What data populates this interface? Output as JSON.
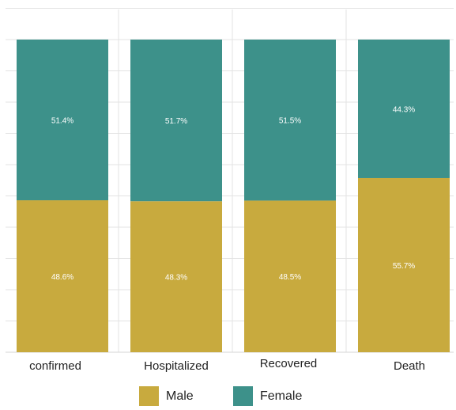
{
  "chart_data": {
    "type": "bar",
    "stacked": true,
    "categories": [
      "confirmed",
      "Hospitalized",
      "Recovered",
      "Death"
    ],
    "series": [
      {
        "name": "Male",
        "values": [
          48.6,
          48.3,
          48.5,
          55.7
        ],
        "labels": [
          "48.6%",
          "48.3%",
          "48.5%",
          "55.7%"
        ],
        "color": "#c8aa3e"
      },
      {
        "name": "Female",
        "values": [
          51.4,
          51.7,
          51.5,
          44.3
        ],
        "labels": [
          "51.4%",
          "51.7%",
          "51.5%",
          "44.3%"
        ],
        "color": "#3d918a"
      }
    ],
    "ylim": [
      0,
      100
    ],
    "grid": true,
    "legend_position": "bottom"
  }
}
